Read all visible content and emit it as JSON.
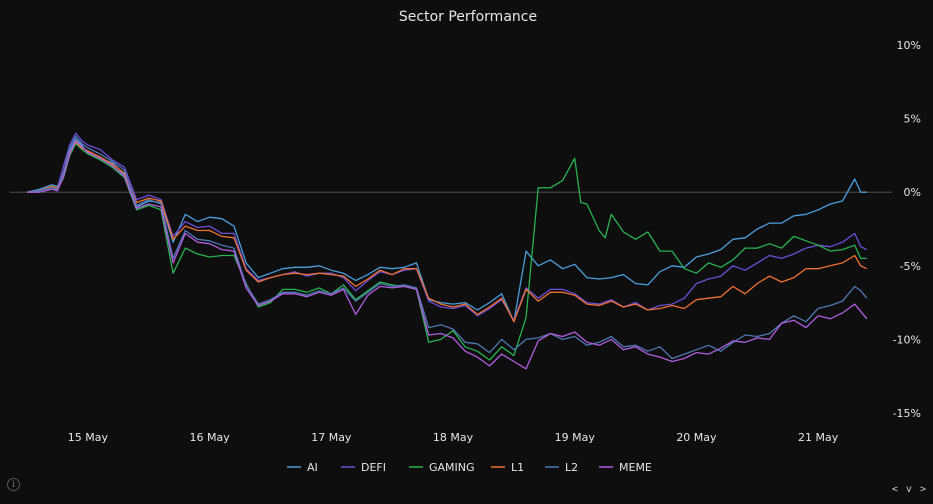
{
  "chart_data": {
    "type": "line",
    "title": "Sector Performance",
    "xlabel": "",
    "ylabel": "",
    "x_ticks": [
      "15 May",
      "16 May",
      "17 May",
      "18 May",
      "19 May",
      "20 May",
      "21 May"
    ],
    "y_ticks": [
      "10%",
      "5%",
      "0%",
      "-5%",
      "-10%",
      "-15%"
    ],
    "ylim": [
      -15,
      10
    ],
    "xlim": [
      14.45,
      21.5
    ],
    "grid": false,
    "zero_line": true,
    "legend_position": "bottom-center",
    "series": [
      {
        "name": "AI",
        "color": "#4a9fdc",
        "x": [
          14.5,
          14.6,
          14.7,
          14.75,
          14.8,
          14.85,
          14.9,
          14.95,
          15.0,
          15.1,
          15.2,
          15.3,
          15.4,
          15.5,
          15.6,
          15.7,
          15.8,
          15.9,
          16.0,
          16.1,
          16.2,
          16.3,
          16.4,
          16.5,
          16.6,
          16.7,
          16.8,
          16.9,
          17.0,
          17.1,
          17.2,
          17.3,
          17.4,
          17.5,
          17.6,
          17.7,
          17.8,
          17.9,
          18.0,
          18.1,
          18.2,
          18.3,
          18.4,
          18.5,
          18.6,
          18.7,
          18.8,
          18.9,
          19.0,
          19.1,
          19.2,
          19.3,
          19.4,
          19.5,
          19.6,
          19.7,
          19.8,
          19.9,
          20.0,
          20.1,
          20.2,
          20.3,
          20.4,
          20.5,
          20.6,
          20.7,
          20.8,
          20.9,
          21.0,
          21.1,
          21.2,
          21.3,
          21.35,
          21.4
        ],
        "y": [
          0,
          0.2,
          0.5,
          0.4,
          1.3,
          2.8,
          3.6,
          3.2,
          2.6,
          2.3,
          2.0,
          1.2,
          -1.0,
          -0.6,
          -0.7,
          -3.4,
          -1.5,
          -2.0,
          -1.7,
          -1.8,
          -2.3,
          -4.8,
          -5.8,
          -5.5,
          -5.2,
          -5.1,
          -5.1,
          -5.0,
          -5.3,
          -5.5,
          -6.0,
          -5.6,
          -5.1,
          -5.2,
          -5.1,
          -4.8,
          -7.3,
          -7.5,
          -7.6,
          -7.5,
          -8.0,
          -7.5,
          -6.9,
          -8.8,
          -4.0,
          -5.0,
          -4.6,
          -5.2,
          -4.9,
          -5.8,
          -5.9,
          -5.8,
          -5.6,
          -6.2,
          -6.3,
          -5.4,
          -5.0,
          -5.1,
          -4.4,
          -4.2,
          -3.9,
          -3.2,
          -3.1,
          -2.5,
          -2.1,
          -2.1,
          -1.6,
          -1.5,
          -1.2,
          -0.8,
          -0.6,
          0.9,
          0.0,
          0.0
        ]
      },
      {
        "name": "DEFI",
        "color": "#6b4fd6",
        "x": [
          14.5,
          14.6,
          14.7,
          14.75,
          14.8,
          14.85,
          14.9,
          14.95,
          15.0,
          15.1,
          15.2,
          15.3,
          15.4,
          15.5,
          15.6,
          15.7,
          15.8,
          15.9,
          16.0,
          16.1,
          16.2,
          16.3,
          16.4,
          16.5,
          16.6,
          16.7,
          16.8,
          16.9,
          17.0,
          17.1,
          17.2,
          17.3,
          17.4,
          17.5,
          17.6,
          17.7,
          17.8,
          17.9,
          18.0,
          18.1,
          18.2,
          18.3,
          18.4,
          18.5,
          18.6,
          18.7,
          18.8,
          18.9,
          19.0,
          19.1,
          19.2,
          19.3,
          19.4,
          19.5,
          19.6,
          19.7,
          19.8,
          19.9,
          20.0,
          20.1,
          20.2,
          20.3,
          20.4,
          20.5,
          20.6,
          20.7,
          20.8,
          20.9,
          21.0,
          21.1,
          21.2,
          21.3,
          21.35,
          21.4
        ],
        "y": [
          0,
          0.1,
          0.3,
          0.3,
          1.8,
          3.2,
          4.0,
          3.5,
          3.2,
          2.9,
          2.2,
          1.7,
          -0.5,
          -0.2,
          -0.5,
          -3.0,
          -2.0,
          -2.4,
          -2.3,
          -2.8,
          -2.8,
          -5.2,
          -6.0,
          -5.8,
          -5.6,
          -5.4,
          -5.7,
          -5.5,
          -5.5,
          -5.8,
          -6.7,
          -6.0,
          -5.4,
          -5.6,
          -5.3,
          -5.2,
          -7.4,
          -7.8,
          -7.9,
          -7.7,
          -8.4,
          -7.9,
          -7.3,
          -8.7,
          -6.5,
          -7.2,
          -6.6,
          -6.6,
          -6.9,
          -7.5,
          -7.6,
          -7.3,
          -7.8,
          -7.5,
          -8.0,
          -7.7,
          -7.6,
          -7.2,
          -6.2,
          -5.9,
          -5.7,
          -5.0,
          -5.3,
          -4.8,
          -4.3,
          -4.5,
          -4.2,
          -3.8,
          -3.6,
          -3.7,
          -3.4,
          -2.8,
          -3.7,
          -3.9
        ]
      },
      {
        "name": "GAMING",
        "color": "#27b34f",
        "x": [
          14.5,
          14.6,
          14.7,
          14.75,
          14.8,
          14.85,
          14.9,
          14.95,
          15.0,
          15.1,
          15.2,
          15.3,
          15.4,
          15.5,
          15.6,
          15.7,
          15.8,
          15.9,
          16.0,
          16.1,
          16.2,
          16.3,
          16.4,
          16.5,
          16.6,
          16.7,
          16.8,
          16.9,
          17.0,
          17.1,
          17.2,
          17.3,
          17.4,
          17.5,
          17.6,
          17.7,
          17.8,
          17.9,
          18.0,
          18.1,
          18.2,
          18.3,
          18.4,
          18.5,
          18.6,
          18.7,
          18.8,
          18.9,
          19.0,
          19.05,
          19.1,
          19.2,
          19.25,
          19.3,
          19.4,
          19.5,
          19.6,
          19.7,
          19.8,
          19.9,
          20.0,
          20.1,
          20.2,
          20.3,
          20.4,
          20.5,
          20.6,
          20.7,
          20.8,
          20.9,
          21.0,
          21.1,
          21.2,
          21.3,
          21.35,
          21.4
        ],
        "y": [
          0,
          0.1,
          0.3,
          0.2,
          1.0,
          2.5,
          3.3,
          2.9,
          2.6,
          2.2,
          1.7,
          1.0,
          -1.2,
          -0.9,
          -1.2,
          -5.5,
          -3.8,
          -4.2,
          -4.4,
          -4.3,
          -4.3,
          -6.2,
          -7.8,
          -7.5,
          -6.6,
          -6.6,
          -6.8,
          -6.5,
          -6.9,
          -6.3,
          -7.3,
          -6.7,
          -6.1,
          -6.3,
          -6.4,
          -6.6,
          -10.2,
          -10.0,
          -9.4,
          -10.5,
          -10.8,
          -11.4,
          -10.5,
          -11.1,
          -8.5,
          0.3,
          0.3,
          0.8,
          2.3,
          -0.7,
          -0.8,
          -2.6,
          -3.1,
          -1.5,
          -2.7,
          -3.2,
          -2.7,
          -4.0,
          -4.0,
          -5.2,
          -5.5,
          -4.8,
          -5.1,
          -4.6,
          -3.8,
          -3.8,
          -3.5,
          -3.8,
          -3.0,
          -3.3,
          -3.6,
          -4.0,
          -3.9,
          -3.6,
          -4.5,
          -4.5
        ]
      },
      {
        "name": "L1",
        "color": "#f07032",
        "x": [
          14.5,
          14.6,
          14.7,
          14.75,
          14.8,
          14.85,
          14.9,
          14.95,
          15.0,
          15.1,
          15.2,
          15.3,
          15.4,
          15.5,
          15.6,
          15.7,
          15.8,
          15.9,
          16.0,
          16.1,
          16.2,
          16.3,
          16.4,
          16.5,
          16.6,
          16.7,
          16.8,
          16.9,
          17.0,
          17.1,
          17.2,
          17.3,
          17.4,
          17.5,
          17.6,
          17.7,
          17.8,
          17.9,
          18.0,
          18.1,
          18.2,
          18.3,
          18.4,
          18.5,
          18.6,
          18.7,
          18.8,
          18.9,
          19.0,
          19.1,
          19.2,
          19.3,
          19.4,
          19.5,
          19.6,
          19.7,
          19.8,
          19.9,
          20.0,
          20.1,
          20.2,
          20.3,
          20.4,
          20.5,
          20.6,
          20.7,
          20.8,
          20.9,
          21.0,
          21.1,
          21.2,
          21.3,
          21.35,
          21.4
        ],
        "y": [
          0,
          0.1,
          0.4,
          0.3,
          1.2,
          2.7,
          3.4,
          3.0,
          2.8,
          2.4,
          1.9,
          1.3,
          -0.7,
          -0.4,
          -0.6,
          -3.2,
          -2.3,
          -2.6,
          -2.6,
          -3.0,
          -3.1,
          -5.3,
          -6.1,
          -5.8,
          -5.6,
          -5.5,
          -5.6,
          -5.5,
          -5.6,
          -5.7,
          -6.4,
          -5.9,
          -5.3,
          -5.6,
          -5.2,
          -5.2,
          -7.2,
          -7.6,
          -7.8,
          -7.6,
          -8.3,
          -7.8,
          -7.2,
          -8.8,
          -6.6,
          -7.4,
          -6.8,
          -6.8,
          -7.0,
          -7.6,
          -7.7,
          -7.4,
          -7.8,
          -7.6,
          -8.0,
          -7.9,
          -7.7,
          -7.9,
          -7.3,
          -7.2,
          -7.1,
          -6.4,
          -6.9,
          -6.2,
          -5.7,
          -6.1,
          -5.8,
          -5.2,
          -5.2,
          -5.0,
          -4.8,
          -4.3,
          -5.0,
          -5.2
        ]
      },
      {
        "name": "L2",
        "color": "#4d78b2",
        "x": [
          14.5,
          14.6,
          14.7,
          14.75,
          14.8,
          14.85,
          14.9,
          14.95,
          15.0,
          15.1,
          15.2,
          15.3,
          15.4,
          15.5,
          15.6,
          15.7,
          15.8,
          15.9,
          16.0,
          16.1,
          16.2,
          16.3,
          16.4,
          16.5,
          16.6,
          16.7,
          16.8,
          16.9,
          17.0,
          17.1,
          17.2,
          17.3,
          17.4,
          17.5,
          17.6,
          17.7,
          17.8,
          17.9,
          18.0,
          18.1,
          18.2,
          18.3,
          18.4,
          18.5,
          18.6,
          18.7,
          18.8,
          18.9,
          19.0,
          19.1,
          19.2,
          19.3,
          19.4,
          19.5,
          19.6,
          19.7,
          19.8,
          19.9,
          20.0,
          20.1,
          20.2,
          20.3,
          20.4,
          20.5,
          20.6,
          20.7,
          20.8,
          20.9,
          21.0,
          21.1,
          21.2,
          21.3,
          21.35,
          21.4
        ],
        "y": [
          0,
          0.1,
          0.3,
          0.2,
          1.4,
          3.0,
          3.8,
          3.3,
          3.0,
          2.6,
          2.1,
          1.5,
          -0.9,
          -0.5,
          -0.8,
          -4.5,
          -2.6,
          -3.2,
          -3.3,
          -3.6,
          -3.8,
          -6.3,
          -7.6,
          -7.3,
          -6.8,
          -6.8,
          -7.0,
          -6.7,
          -6.9,
          -6.5,
          -7.4,
          -6.8,
          -6.2,
          -6.4,
          -6.3,
          -6.5,
          -9.2,
          -9.0,
          -9.3,
          -10.2,
          -10.3,
          -10.9,
          -10.0,
          -10.7,
          -10.0,
          -9.9,
          -9.6,
          -10.0,
          -9.8,
          -10.4,
          -10.2,
          -9.8,
          -10.5,
          -10.4,
          -10.8,
          -10.5,
          -11.3,
          -11.0,
          -10.7,
          -10.4,
          -10.8,
          -10.2,
          -9.7,
          -9.8,
          -9.6,
          -8.9,
          -8.4,
          -8.8,
          -7.9,
          -7.7,
          -7.4,
          -6.4,
          -6.7,
          -7.2
        ]
      },
      {
        "name": "MEME",
        "color": "#b35de0",
        "x": [
          14.5,
          14.6,
          14.7,
          14.75,
          14.8,
          14.85,
          14.9,
          14.95,
          15.0,
          15.1,
          15.2,
          15.3,
          15.4,
          15.5,
          15.6,
          15.7,
          15.8,
          15.9,
          16.0,
          16.1,
          16.2,
          16.3,
          16.4,
          16.5,
          16.6,
          16.7,
          16.8,
          16.9,
          17.0,
          17.1,
          17.2,
          17.3,
          17.4,
          17.5,
          17.6,
          17.7,
          17.8,
          17.9,
          18.0,
          18.1,
          18.2,
          18.3,
          18.4,
          18.5,
          18.6,
          18.7,
          18.8,
          18.9,
          19.0,
          19.1,
          19.2,
          19.3,
          19.4,
          19.5,
          19.6,
          19.7,
          19.8,
          19.9,
          20.0,
          20.1,
          20.2,
          20.3,
          20.4,
          20.5,
          20.6,
          20.7,
          20.8,
          20.9,
          21.0,
          21.1,
          21.2,
          21.3,
          21.35,
          21.4
        ],
        "y": [
          0,
          0.0,
          0.2,
          0.1,
          1.1,
          2.6,
          3.5,
          3.1,
          2.7,
          2.3,
          1.8,
          1.1,
          -1.1,
          -0.8,
          -1.0,
          -4.8,
          -2.8,
          -3.4,
          -3.5,
          -3.9,
          -4.0,
          -6.5,
          -7.7,
          -7.4,
          -6.9,
          -6.9,
          -7.1,
          -6.8,
          -7.0,
          -6.6,
          -8.3,
          -7.0,
          -6.4,
          -6.5,
          -6.4,
          -6.6,
          -9.7,
          -9.6,
          -9.9,
          -10.8,
          -11.2,
          -11.8,
          -11.0,
          -11.5,
          -12.0,
          -10.1,
          -9.6,
          -9.8,
          -9.5,
          -10.2,
          -10.4,
          -10.0,
          -10.7,
          -10.5,
          -11.0,
          -11.2,
          -11.5,
          -11.3,
          -10.9,
          -11.0,
          -10.6,
          -10.1,
          -10.2,
          -9.9,
          -10.0,
          -8.9,
          -8.7,
          -9.2,
          -8.4,
          -8.6,
          -8.2,
          -7.6,
          -8.1,
          -8.6
        ]
      }
    ]
  },
  "controls": {
    "info_glyph": "i",
    "nav_arrows": "< v >"
  }
}
